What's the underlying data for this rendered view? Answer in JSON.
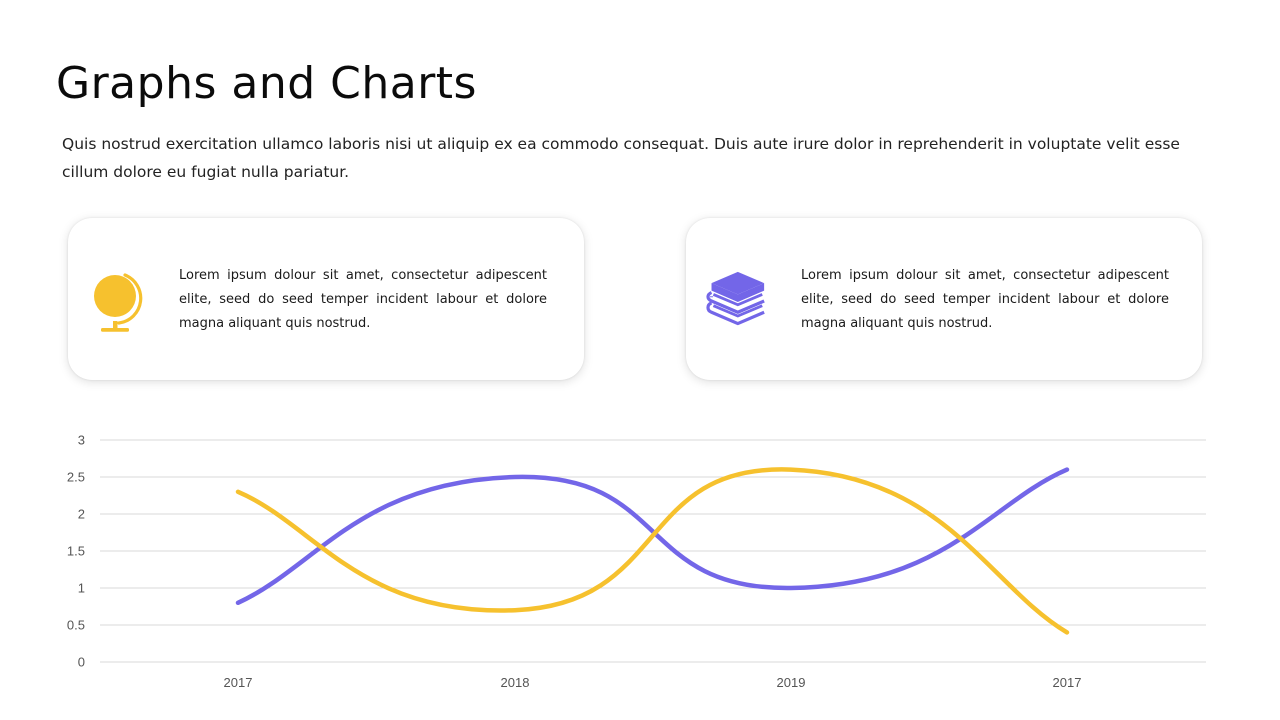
{
  "slide": {
    "title": "Graphs and Charts",
    "intro": "Quis nostrud exercitation ullamco laboris nisi ut aliquip ex ea commodo consequat. Duis aute irure dolor in reprehenderit in voluptate velit esse cillum dolore eu fugiat nulla pariatur."
  },
  "cards": [
    {
      "icon": "globe-icon",
      "text": "Lorem ipsum dolour sit amet, consectetur adipescent elite, seed do seed temper incident labour et dolore magna aliquant quis nostrud."
    },
    {
      "icon": "books-icon",
      "text": "Lorem ipsum dolour sit amet, consectetur adipescent elite, seed do seed temper incident labour et dolore magna aliquant quis nostrud."
    }
  ],
  "colors": {
    "purple": "#7366e8",
    "yellow": "#f6c12e",
    "grid": "#d9d9d9"
  },
  "chart_data": {
    "type": "line",
    "categories": [
      "2017",
      "2018",
      "2019",
      "2017"
    ],
    "series": [
      {
        "values": [
          0.8,
          2.5,
          1.0,
          2.6
        ],
        "color": "#7366e8"
      },
      {
        "values": [
          2.3,
          0.7,
          2.6,
          0.4
        ],
        "color": "#f6c12e"
      }
    ],
    "ylim": [
      0,
      3
    ],
    "yticks": [
      "0",
      "0.5",
      "1",
      "1.5",
      "2",
      "2.5",
      "3"
    ],
    "smooth": true,
    "grid": true,
    "legend": "none",
    "title": "",
    "xlabel": "",
    "ylabel": ""
  }
}
